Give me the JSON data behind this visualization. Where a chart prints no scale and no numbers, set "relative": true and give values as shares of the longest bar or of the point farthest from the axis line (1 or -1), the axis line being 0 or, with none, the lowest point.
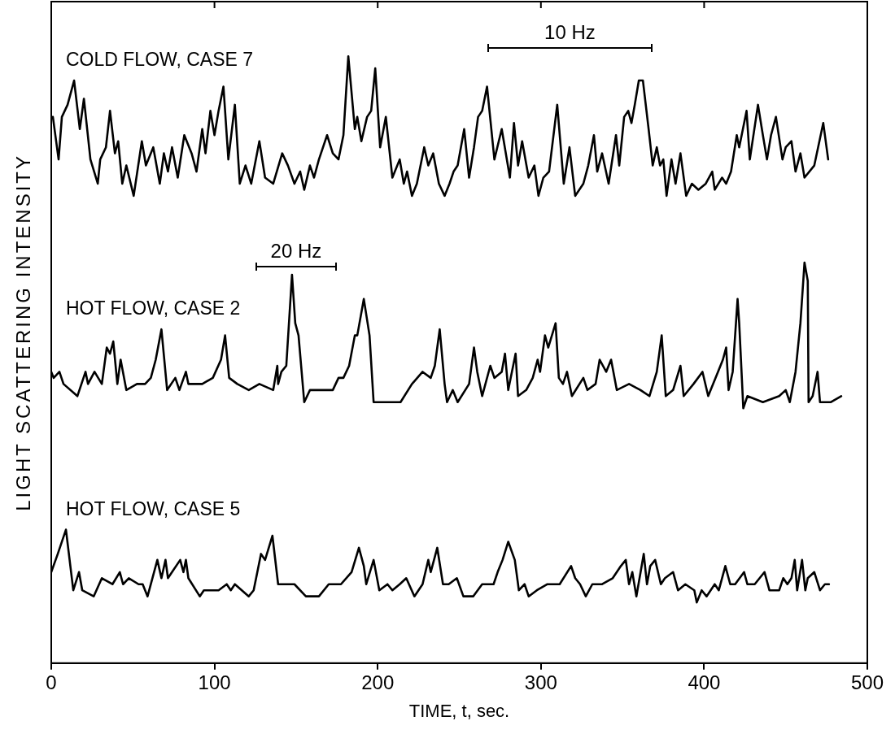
{
  "chart_data": {
    "type": "line",
    "relative": true,
    "xlabel": "TIME, t, sec.",
    "ylabel": "LIGHT SCATTERING INTENSITY",
    "xlim": [
      0,
      500
    ],
    "xticks": [
      0,
      100,
      200,
      300,
      400,
      500
    ],
    "grid": false,
    "marker": "none",
    "line_style": "solid",
    "annotations": [
      "10 Hz",
      "20 Hz"
    ],
    "series": [
      {
        "name": "COLD FLOW, CASE 7",
        "color": "#000000",
        "x": [
          1,
          4.5,
          6.5,
          10,
          14,
          17.5,
          20,
          24,
          28.5,
          30,
          33.5,
          36,
          39,
          41,
          43.5,
          46,
          50.5,
          55.5,
          58,
          62.5,
          66.5,
          69,
          71.5,
          74,
          77.5,
          81.5,
          86,
          89,
          92.5,
          94.5,
          97.5,
          100,
          102.5,
          105.5,
          108.5,
          112.5,
          115.5,
          119,
          122.5,
          127.5,
          131,
          136,
          141.5,
          145,
          149,
          152.5,
          155,
          158.5,
          161,
          164,
          169,
          172.5,
          176,
          179,
          182,
          186,
          187.5,
          190,
          193.5,
          196,
          198.5,
          201.5,
          205,
          209,
          213.5,
          216,
          218,
          221,
          224,
          228.5,
          231,
          234,
          237.5,
          241,
          244,
          246.5,
          249,
          253,
          256,
          259,
          261.5,
          264,
          267,
          271.5,
          276,
          281,
          283.5,
          286,
          288.5,
          292.5,
          296,
          298.5,
          301.5,
          305,
          310,
          314,
          317.5,
          321,
          326,
          329,
          332.5,
          334.5,
          337.5,
          341.5,
          346,
          348,
          351,
          353.5,
          355.5,
          357.5,
          360,
          362.5,
          366,
          368.5,
          371,
          373,
          375,
          377,
          380,
          382.5,
          385.5,
          389,
          392.5,
          396.5,
          401,
          405,
          406.5,
          411,
          413.5,
          416.5,
          420,
          421.5,
          426,
          428,
          433,
          436,
          438.5,
          441,
          444,
          448,
          450,
          453.5,
          456,
          459,
          461.5,
          467.5,
          473,
          476
        ],
        "values": [
          0.9,
          0.83,
          0.9,
          0.92,
          0.96,
          0.88,
          0.93,
          0.83,
          0.79,
          0.83,
          0.85,
          0.91,
          0.84,
          0.86,
          0.79,
          0.82,
          0.77,
          0.86,
          0.82,
          0.85,
          0.79,
          0.84,
          0.81,
          0.85,
          0.8,
          0.87,
          0.84,
          0.81,
          0.88,
          0.84,
          0.91,
          0.87,
          0.91,
          0.95,
          0.83,
          0.92,
          0.79,
          0.82,
          0.79,
          0.86,
          0.8,
          0.79,
          0.84,
          0.82,
          0.79,
          0.81,
          0.78,
          0.82,
          0.8,
          0.83,
          0.87,
          0.84,
          0.83,
          0.87,
          1,
          0.88,
          0.9,
          0.86,
          0.9,
          0.91,
          0.98,
          0.85,
          0.9,
          0.8,
          0.83,
          0.79,
          0.81,
          0.77,
          0.79,
          0.85,
          0.82,
          0.84,
          0.79,
          0.77,
          0.79,
          0.81,
          0.82,
          0.88,
          0.8,
          0.85,
          0.9,
          0.91,
          0.95,
          0.83,
          0.88,
          0.8,
          0.89,
          0.82,
          0.86,
          0.8,
          0.82,
          0.77,
          0.8,
          0.81,
          0.92,
          0.79,
          0.85,
          0.77,
          0.79,
          0.82,
          0.87,
          0.81,
          0.84,
          0.79,
          0.87,
          0.82,
          0.9,
          0.91,
          0.89,
          0.92,
          0.96,
          0.96,
          0.88,
          0.82,
          0.85,
          0.82,
          0.83,
          0.77,
          0.83,
          0.79,
          0.84,
          0.77,
          0.79,
          0.78,
          0.79,
          0.81,
          0.78,
          0.8,
          0.79,
          0.81,
          0.87,
          0.85,
          0.91,
          0.83,
          0.92,
          0.87,
          0.83,
          0.87,
          0.9,
          0.83,
          0.85,
          0.86,
          0.81,
          0.84,
          0.8,
          0.82,
          0.89,
          0.83
        ]
      },
      {
        "name": "HOT FLOW, CASE 2",
        "color": "#000000",
        "x": [
          0,
          1.5,
          5,
          7.5,
          16,
          21,
          22.5,
          26.5,
          31,
          34,
          36,
          38,
          40.5,
          42.5,
          46,
          52.5,
          57.5,
          61,
          64,
          67.5,
          71,
          76,
          78.5,
          82.5,
          84,
          92.5,
          99,
          104,
          106.5,
          109,
          114,
          121,
          127.5,
          136,
          138.5,
          139,
          141,
          144,
          147.5,
          149.5,
          151.5,
          155,
          158.5,
          167.5,
          172.5,
          176,
          179,
          182.5,
          186,
          187.5,
          191.5,
          195,
          197.5,
          204,
          211,
          214,
          221,
          227.5,
          232.5,
          235,
          238,
          241,
          242.5,
          246,
          249,
          256,
          259,
          261,
          264,
          269,
          271.5,
          276,
          278,
          280,
          284.5,
          286,
          291,
          295,
          298,
          299.5,
          302.5,
          304.5,
          309,
          311,
          313.5,
          316,
          319,
          326,
          328.5,
          333.5,
          336,
          340,
          343,
          346.5,
          354,
          361,
          366.5,
          371,
          374,
          376.5,
          381,
          385.5,
          387.5,
          393.5,
          399,
          402.5,
          408.5,
          411.5,
          413.5,
          415,
          417.5,
          420.5,
          421.5,
          424,
          426.5,
          436,
          446,
          450,
          452.5,
          456,
          459,
          461.5,
          463.5,
          464,
          466.5,
          469.5,
          471,
          477.5,
          484
        ],
        "values": [
          0.48,
          0.47,
          0.48,
          0.46,
          0.44,
          0.48,
          0.46,
          0.48,
          0.46,
          0.52,
          0.51,
          0.53,
          0.46,
          0.5,
          0.45,
          0.46,
          0.46,
          0.47,
          0.5,
          0.55,
          0.45,
          0.47,
          0.45,
          0.48,
          0.46,
          0.46,
          0.47,
          0.5,
          0.54,
          0.47,
          0.46,
          0.45,
          0.46,
          0.45,
          0.49,
          0.46,
          0.48,
          0.49,
          0.64,
          0.56,
          0.54,
          0.43,
          0.45,
          0.45,
          0.45,
          0.47,
          0.47,
          0.49,
          0.54,
          0.54,
          0.6,
          0.54,
          0.43,
          0.43,
          0.43,
          0.43,
          0.46,
          0.48,
          0.47,
          0.49,
          0.55,
          0.46,
          0.43,
          0.45,
          0.43,
          0.46,
          0.52,
          0.48,
          0.44,
          0.49,
          0.47,
          0.48,
          0.51,
          0.45,
          0.51,
          0.44,
          0.45,
          0.47,
          0.5,
          0.48,
          0.54,
          0.52,
          0.56,
          0.47,
          0.46,
          0.48,
          0.44,
          0.47,
          0.45,
          0.46,
          0.5,
          0.48,
          0.5,
          0.45,
          0.46,
          0.45,
          0.44,
          0.48,
          0.54,
          0.44,
          0.45,
          0.49,
          0.44,
          0.46,
          0.48,
          0.44,
          0.48,
          0.5,
          0.52,
          0.45,
          0.48,
          0.6,
          0.56,
          0.42,
          0.44,
          0.43,
          0.44,
          0.45,
          0.43,
          0.48,
          0.56,
          0.66,
          0.63,
          0.43,
          0.44,
          0.48,
          0.43,
          0.43,
          0.44
        ]
      },
      {
        "name": "HOT FLOW, CASE 5",
        "color": "#000000",
        "x": [
          0,
          4,
          9,
          13.5,
          17,
          19,
          26,
          31,
          37.5,
          42,
          44,
          47.5,
          53.5,
          56,
          59,
          65,
          67.5,
          70,
          71.5,
          74,
          79,
          81,
          82.5,
          84,
          91,
          93.5,
          102.5,
          107.5,
          110,
          112.5,
          121,
          124,
          128.5,
          131,
          135.5,
          139,
          144,
          149,
          156,
          159,
          164,
          170,
          174,
          177.5,
          184,
          188.5,
          191.5,
          193,
          197.5,
          201,
          206,
          209,
          213.5,
          217.5,
          222.5,
          227.5,
          231,
          232.5,
          236.5,
          240,
          243.5,
          248.5,
          252.5,
          258.5,
          264,
          271,
          273.5,
          276.5,
          280,
          284,
          286.5,
          290,
          292.5,
          297.5,
          304,
          311.5,
          318.5,
          321,
          324,
          327.5,
          331.5,
          337.5,
          344,
          349,
          352,
          354,
          356,
          358.5,
          363,
          365,
          367,
          370,
          373.5,
          376,
          381,
          384,
          388.5,
          394,
          395.5,
          398.5,
          401.5,
          406.5,
          409,
          413,
          416,
          419,
          424.5,
          426.5,
          431,
          434,
          437,
          440,
          446,
          448.5,
          451,
          453.5,
          455.5,
          457,
          460,
          462,
          463.5,
          467.5,
          471,
          474,
          476.5
        ],
        "values": [
          0.15,
          0.18,
          0.22,
          0.12,
          0.15,
          0.12,
          0.11,
          0.14,
          0.13,
          0.15,
          0.13,
          0.14,
          0.13,
          0.13,
          0.11,
          0.17,
          0.14,
          0.17,
          0.14,
          0.15,
          0.17,
          0.15,
          0.17,
          0.14,
          0.11,
          0.12,
          0.12,
          0.13,
          0.12,
          0.13,
          0.11,
          0.12,
          0.18,
          0.17,
          0.21,
          0.13,
          0.13,
          0.13,
          0.11,
          0.11,
          0.11,
          0.13,
          0.13,
          0.13,
          0.15,
          0.19,
          0.16,
          0.13,
          0.17,
          0.12,
          0.13,
          0.12,
          0.13,
          0.14,
          0.11,
          0.13,
          0.17,
          0.15,
          0.19,
          0.13,
          0.13,
          0.14,
          0.11,
          0.11,
          0.13,
          0.13,
          0.15,
          0.17,
          0.2,
          0.17,
          0.12,
          0.13,
          0.11,
          0.12,
          0.13,
          0.13,
          0.16,
          0.14,
          0.13,
          0.11,
          0.13,
          0.13,
          0.14,
          0.16,
          0.17,
          0.13,
          0.15,
          0.11,
          0.18,
          0.13,
          0.16,
          0.17,
          0.13,
          0.14,
          0.15,
          0.12,
          0.13,
          0.12,
          0.1,
          0.12,
          0.11,
          0.13,
          0.12,
          0.16,
          0.13,
          0.13,
          0.15,
          0.13,
          0.13,
          0.14,
          0.15,
          0.12,
          0.12,
          0.14,
          0.13,
          0.14,
          0.17,
          0.12,
          0.17,
          0.12,
          0.14,
          0.15,
          0.12,
          0.13,
          0.13
        ]
      }
    ]
  }
}
